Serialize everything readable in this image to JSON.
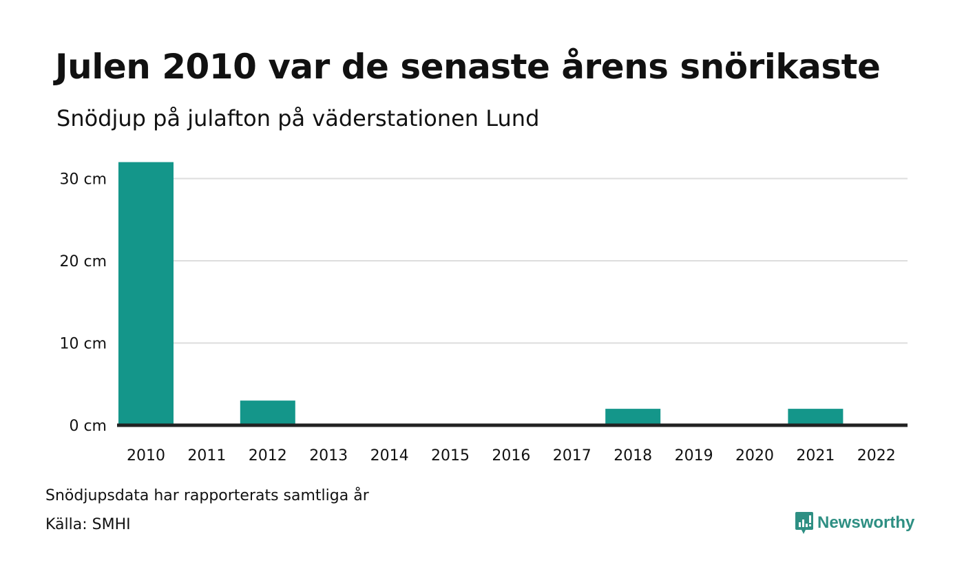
{
  "header": {
    "title": "Julen 2010 var de senaste årens snörikaste",
    "subtitle": "Snödjup på julafton på väderstationen Lund"
  },
  "footer": {
    "note": "Snödjupsdata har rapporterats samtliga år",
    "source": "Källa: SMHI",
    "brand": "Newsworthy"
  },
  "colors": {
    "bar": "#14968a",
    "grid": "#dddddd",
    "axis": "#222222",
    "brand": "#2e8f83"
  },
  "chart_data": {
    "type": "bar",
    "categories": [
      "2010",
      "2011",
      "2012",
      "2013",
      "2014",
      "2015",
      "2016",
      "2017",
      "2018",
      "2019",
      "2020",
      "2021",
      "2022"
    ],
    "values": [
      32,
      0,
      3,
      0,
      0,
      0,
      0,
      0,
      2,
      0,
      0,
      2,
      0
    ],
    "ylim": [
      0,
      33
    ],
    "yticks": [
      0,
      10,
      20,
      30
    ],
    "ytick_labels": [
      "0 cm",
      "10 cm",
      "20 cm",
      "30 cm"
    ],
    "grid": true,
    "xlabel": "",
    "ylabel": ""
  }
}
